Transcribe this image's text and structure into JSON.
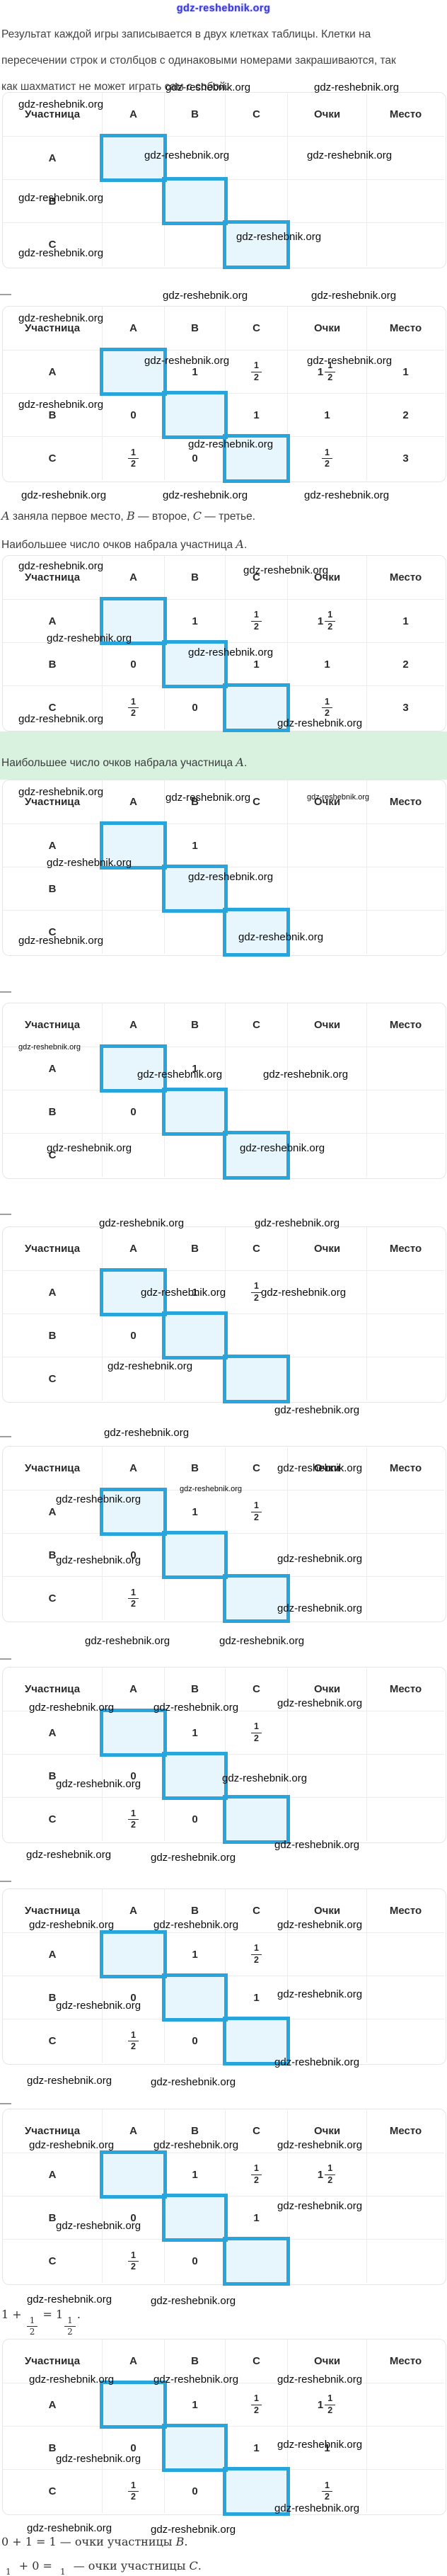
{
  "watermark": "gdz-reshebnik.org",
  "separator_dash": "—",
  "colors": {
    "highlight_border": "#29a5dd",
    "highlight_fill": "#e7f5fc",
    "green_block": "#d9f2e0",
    "watermark_top": "#3a3ad6"
  },
  "intro_lines": [
    "Результат каждой игры записывается в двух клетках таблицы. Клетки на",
    "пересечении строк и столбцов с одинаковыми номерами закрашиваются, так",
    "как шахматист не может играть сам с собой."
  ],
  "statements": {
    "places": "*A* заняла первое место, *B* — второе, *C* — третье.",
    "most_points": "Наибольшее число очков набрала участница *A*.",
    "formula_a": "1 + [1/2] = 1[1/2].",
    "formula_b": "0 + 1 = 1 — очки участницы *B*.",
    "formula_c": "[1/2] + 0 = [1/2] — очки участницы *C*."
  },
  "table": {
    "columns": [
      "Участница",
      "A",
      "B",
      "C",
      "Очки",
      "Место"
    ]
  },
  "tables": [
    {
      "rows": [
        {
          "label": "A",
          "cells": [
            null,
            "",
            "",
            "",
            ""
          ]
        },
        {
          "label": "B",
          "cells": [
            "",
            null,
            "",
            "",
            ""
          ]
        },
        {
          "label": "C",
          "cells": [
            "",
            "",
            null,
            "",
            ""
          ]
        }
      ]
    },
    {
      "rows": [
        {
          "label": "A",
          "cells": [
            null,
            "1",
            "[1/2]",
            "1[1/2]",
            "1"
          ]
        },
        {
          "label": "B",
          "cells": [
            "0",
            null,
            "1",
            "1",
            "2"
          ]
        },
        {
          "label": "C",
          "cells": [
            "[1/2]",
            "0",
            null,
            "[1/2]",
            "3"
          ]
        }
      ]
    },
    {
      "rows": [
        {
          "label": "A",
          "cells": [
            null,
            "1",
            "[1/2]",
            "1[1/2]",
            "1"
          ]
        },
        {
          "label": "B",
          "cells": [
            "0",
            null,
            "1",
            "1",
            "2"
          ]
        },
        {
          "label": "C",
          "cells": [
            "[1/2]",
            "0",
            null,
            "[1/2]",
            "3"
          ]
        }
      ]
    },
    {
      "rows": [
        {
          "label": "A",
          "cells": [
            null,
            "1",
            "",
            "",
            ""
          ]
        },
        {
          "label": "B",
          "cells": [
            "",
            null,
            "",
            "",
            ""
          ]
        },
        {
          "label": "C",
          "cells": [
            "",
            "",
            null,
            "",
            ""
          ]
        }
      ]
    },
    {
      "rows": [
        {
          "label": "A",
          "cells": [
            null,
            "1",
            "",
            "",
            ""
          ]
        },
        {
          "label": "B",
          "cells": [
            "0",
            null,
            "",
            "",
            ""
          ]
        },
        {
          "label": "C",
          "cells": [
            "",
            "",
            null,
            "",
            ""
          ]
        }
      ]
    },
    {
      "rows": [
        {
          "label": "A",
          "cells": [
            null,
            "1",
            "[1/2]",
            "",
            ""
          ]
        },
        {
          "label": "B",
          "cells": [
            "0",
            null,
            "",
            "",
            ""
          ]
        },
        {
          "label": "C",
          "cells": [
            "",
            "",
            null,
            "",
            ""
          ]
        }
      ]
    },
    {
      "rows": [
        {
          "label": "A",
          "cells": [
            null,
            "1",
            "[1/2]",
            "",
            ""
          ]
        },
        {
          "label": "B",
          "cells": [
            "0",
            null,
            "",
            "",
            ""
          ]
        },
        {
          "label": "C",
          "cells": [
            "[1/2]",
            "",
            null,
            "",
            ""
          ]
        }
      ]
    },
    {
      "rows": [
        {
          "label": "A",
          "cells": [
            null,
            "1",
            "[1/2]",
            "",
            ""
          ]
        },
        {
          "label": "B",
          "cells": [
            "0",
            null,
            "",
            "",
            ""
          ]
        },
        {
          "label": "C",
          "cells": [
            "[1/2]",
            "0",
            null,
            "",
            ""
          ]
        }
      ]
    },
    {
      "rows": [
        {
          "label": "A",
          "cells": [
            null,
            "1",
            "[1/2]",
            "",
            ""
          ]
        },
        {
          "label": "B",
          "cells": [
            "0",
            null,
            "1",
            "",
            ""
          ]
        },
        {
          "label": "C",
          "cells": [
            "[1/2]",
            "0",
            null,
            "",
            ""
          ]
        }
      ]
    },
    {
      "rows": [
        {
          "label": "A",
          "cells": [
            null,
            "1",
            "[1/2]",
            "1[1/2]",
            ""
          ]
        },
        {
          "label": "B",
          "cells": [
            "0",
            null,
            "1",
            "",
            ""
          ]
        },
        {
          "label": "C",
          "cells": [
            "[1/2]",
            "0",
            null,
            "",
            ""
          ]
        }
      ]
    },
    {
      "rows": [
        {
          "label": "A",
          "cells": [
            null,
            "1",
            "[1/2]",
            "1[1/2]",
            ""
          ]
        },
        {
          "label": "B",
          "cells": [
            "0",
            null,
            "1",
            "1",
            ""
          ]
        },
        {
          "label": "C",
          "cells": [
            "[1/2]",
            "0",
            null,
            "[1/2]",
            ""
          ]
        }
      ]
    }
  ]
}
